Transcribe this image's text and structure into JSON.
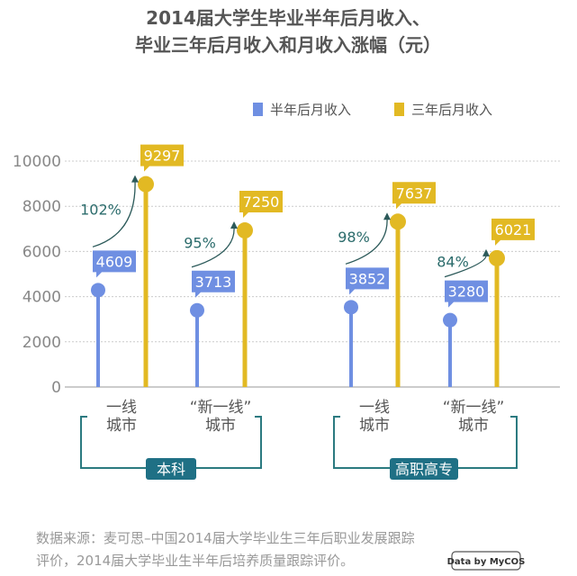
{
  "chart_data": {
    "type": "lollipop",
    "title": [
      "2014届大学生毕业半年后月收入、",
      "毕业三年后月收入和月收入涨幅（元）"
    ],
    "ylim": [
      0,
      10000
    ],
    "yticks": [
      0,
      2000,
      4000,
      6000,
      8000,
      10000
    ],
    "grid": true,
    "legend_position": "top-right",
    "categories": [
      {
        "label": [
          "一线",
          "城市"
        ],
        "group": "本科"
      },
      {
        "label": [
          "“新一线”",
          "城市"
        ],
        "group": "本科"
      },
      {
        "label": [
          "一线",
          "城市"
        ],
        "group": "高职高专"
      },
      {
        "label": [
          "“新一线”",
          "城市"
        ],
        "group": "高职高专"
      }
    ],
    "groups": [
      "本科",
      "高职高专"
    ],
    "series": [
      {
        "name": "半年后月收入",
        "color": "#6f8fe2",
        "values": [
          4609,
          3713,
          3852,
          3280
        ]
      },
      {
        "name": "三年后月收入",
        "color": "#e2b923",
        "values": [
          9297,
          7250,
          7637,
          6021
        ]
      }
    ],
    "growth": [
      "102%",
      "95%",
      "98%",
      "84%"
    ],
    "accent_color": "#2b7a80"
  },
  "footer": {
    "source_line1": "数据来源：麦可思–中国2014届大学毕业生三年后职业发展跟踪",
    "source_line2": "评价，2014届大学毕业生半年后培养质量跟踪评价。",
    "logo_text": "Data by MyCOS"
  }
}
